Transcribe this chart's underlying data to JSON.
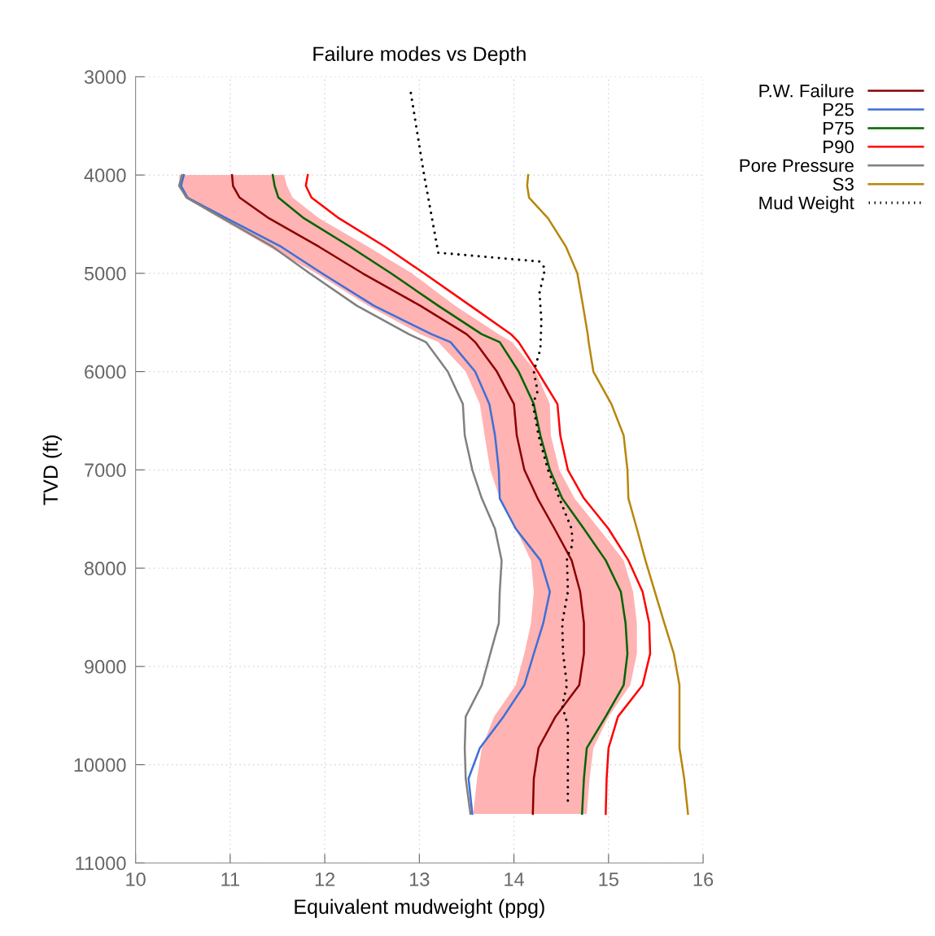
{
  "chart_data": {
    "type": "line",
    "title": "Failure modes vs Depth",
    "xlabel": "Equivalent mudweight (ppg)",
    "ylabel": "TVD (ft)",
    "orientation": "horizontal",
    "xlim": [
      10,
      16
    ],
    "xticks": [
      10,
      11,
      12,
      13,
      14,
      15,
      16
    ],
    "ylim": [
      11000,
      3000
    ],
    "yticks": [
      3000,
      4000,
      5000,
      6000,
      7000,
      8000,
      9000,
      10000,
      11000
    ],
    "grid": true,
    "legend": "top right",
    "marker": "none",
    "series": [
      {
        "name": "P.W. Failure",
        "color": "#8b0000",
        "x": [
          4000,
          4110,
          4230,
          4440,
          4730,
          5000,
          5330,
          5620,
          5700,
          6000,
          6330,
          6650,
          7000,
          7290,
          7600,
          7920,
          8240,
          8560,
          8870,
          9190,
          9510,
          9830,
          10140,
          10500
        ],
        "values": [
          11.02,
          11.03,
          11.1,
          11.41,
          11.94,
          12.4,
          13.01,
          13.5,
          13.59,
          13.82,
          14.0,
          14.03,
          14.11,
          14.25,
          14.43,
          14.61,
          14.7,
          14.74,
          14.74,
          14.69,
          14.44,
          14.26,
          14.21,
          14.2
        ],
        "lower": [
          10.46,
          10.47,
          10.52,
          10.89,
          11.41,
          11.91,
          12.46,
          13.01,
          13.2,
          13.49,
          13.64,
          13.69,
          13.75,
          13.85,
          14.02,
          14.18,
          14.21,
          14.18,
          14.11,
          14.02,
          13.79,
          13.66,
          13.61,
          13.57
        ],
        "upper": [
          11.57,
          11.6,
          11.66,
          11.94,
          12.46,
          12.92,
          13.38,
          13.84,
          13.98,
          14.23,
          14.38,
          14.39,
          14.48,
          14.64,
          14.9,
          15.16,
          15.26,
          15.3,
          15.3,
          15.23,
          15.0,
          14.84,
          14.8,
          14.77
        ]
      },
      {
        "name": "P25",
        "color": "#3d6fd6",
        "x": [
          4000,
          4110,
          4230,
          4440,
          4730,
          5000,
          5330,
          5620,
          5700,
          6000,
          6330,
          6650,
          7000,
          7290,
          7600,
          7920,
          8240,
          8560,
          8870,
          9190,
          9510,
          9830,
          10140,
          10500
        ],
        "values": [
          10.51,
          10.48,
          10.55,
          10.96,
          11.54,
          11.97,
          12.52,
          13.13,
          13.33,
          13.59,
          13.74,
          13.8,
          13.84,
          13.85,
          14.02,
          14.28,
          14.38,
          14.31,
          14.21,
          14.11,
          13.89,
          13.64,
          13.52,
          13.56
        ]
      },
      {
        "name": "P75",
        "color": "#006400",
        "x": [
          4000,
          4110,
          4230,
          4440,
          4730,
          5000,
          5330,
          5620,
          5700,
          6000,
          6330,
          6650,
          7000,
          7290,
          7600,
          7920,
          8240,
          8560,
          8870,
          9190,
          9510,
          9830,
          10140,
          10500
        ],
        "values": [
          11.45,
          11.47,
          11.51,
          11.78,
          12.27,
          12.7,
          13.2,
          13.66,
          13.85,
          14.05,
          14.21,
          14.28,
          14.38,
          14.51,
          14.74,
          14.97,
          15.13,
          15.18,
          15.2,
          15.16,
          14.97,
          14.77,
          14.74,
          14.72
        ]
      },
      {
        "name": "P90",
        "color": "#ff0000",
        "x": [
          4000,
          4110,
          4230,
          4440,
          4730,
          5000,
          5330,
          5620,
          5700,
          6000,
          6330,
          6650,
          7000,
          7290,
          7600,
          7920,
          8240,
          8560,
          8870,
          9190,
          9510,
          9830,
          10140,
          10500
        ],
        "values": [
          11.82,
          11.8,
          11.86,
          12.15,
          12.64,
          13.05,
          13.54,
          13.97,
          14.05,
          14.25,
          14.46,
          14.49,
          14.57,
          14.74,
          15.0,
          15.21,
          15.36,
          15.43,
          15.44,
          15.36,
          15.1,
          15.0,
          14.98,
          14.97
        ]
      },
      {
        "name": "Pore Pressure",
        "color": "#808080",
        "x": [
          4000,
          4110,
          4230,
          4440,
          4730,
          5000,
          5330,
          5620,
          5700,
          6000,
          6330,
          6650,
          7000,
          7290,
          7600,
          7920,
          8240,
          8560,
          8870,
          9190,
          9510,
          9830,
          10140,
          10500
        ],
        "values": [
          10.49,
          10.46,
          10.54,
          10.92,
          11.45,
          11.84,
          12.34,
          12.89,
          13.07,
          13.3,
          13.46,
          13.48,
          13.56,
          13.66,
          13.8,
          13.87,
          13.85,
          13.84,
          13.75,
          13.66,
          13.49,
          13.48,
          13.49,
          13.54
        ]
      },
      {
        "name": "S3",
        "color": "#b8860b",
        "x": [
          4000,
          4110,
          4230,
          4440,
          4730,
          5000,
          5330,
          5620,
          5700,
          6000,
          6330,
          6650,
          7000,
          7290,
          7600,
          7920,
          8240,
          8560,
          8870,
          9190,
          9510,
          9830,
          10140,
          10500
        ],
        "values": [
          14.15,
          14.14,
          14.16,
          14.36,
          14.55,
          14.67,
          14.73,
          14.78,
          14.79,
          14.84,
          15.03,
          15.16,
          15.2,
          15.21,
          15.3,
          15.39,
          15.49,
          15.59,
          15.69,
          15.75,
          15.75,
          15.75,
          15.8,
          15.84
        ]
      },
      {
        "name": "Mud Weight",
        "color": "#000000",
        "line_style": "dotted",
        "x": [
          3165,
          4000,
          4790,
          4880,
          4950,
          5200,
          5480,
          5770,
          6000,
          6200,
          6330,
          6650,
          7000,
          7290,
          7600,
          7760,
          7890,
          8240,
          8560,
          8870,
          9190,
          9400,
          9600,
          10365
        ],
        "values": [
          12.91,
          13.05,
          13.2,
          14.27,
          14.33,
          14.27,
          14.29,
          14.28,
          14.21,
          14.25,
          14.2,
          14.26,
          14.36,
          14.48,
          14.61,
          14.62,
          14.56,
          14.57,
          14.51,
          14.52,
          14.56,
          14.51,
          14.57,
          14.57
        ]
      }
    ]
  }
}
